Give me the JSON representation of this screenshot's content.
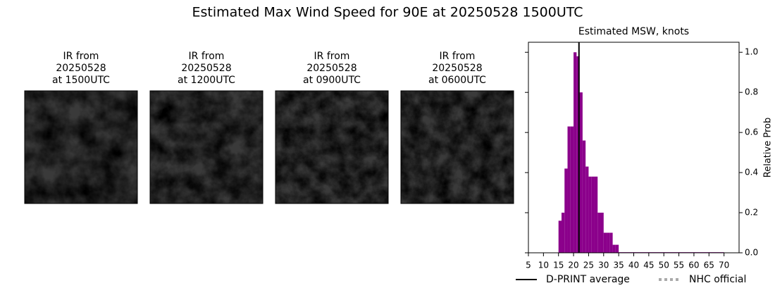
{
  "title": "Estimated Max Wind Speed for 90E at 20250528 1500UTC",
  "images": [
    {
      "lines": [
        "IR from",
        "20250528",
        "at 1500UTC"
      ]
    },
    {
      "lines": [
        "IR from",
        "20250528",
        "at 1200UTC"
      ]
    },
    {
      "lines": [
        "IR from",
        "20250528",
        "at 0900UTC"
      ]
    },
    {
      "lines": [
        "IR from",
        "20250528",
        "at 0600UTC"
      ]
    }
  ],
  "chart_data": {
    "type": "histogram",
    "title": "Estimated MSW, knots",
    "y_label": "Relative Prob",
    "color": "#8b008b",
    "bins": [
      15,
      16,
      17,
      18,
      19,
      20,
      21,
      22,
      23,
      24,
      25,
      26,
      27,
      28,
      29,
      30,
      31,
      32,
      33,
      34,
      35,
      70
    ],
    "values": [
      0.16,
      0.2,
      0.42,
      0.63,
      0.63,
      1.0,
      0.98,
      0.8,
      0.56,
      0.43,
      0.38,
      0.38,
      0.38,
      0.2,
      0.2,
      0.1,
      0.1,
      0.1,
      0.04,
      0.04,
      0.003
    ],
    "xlim": [
      5,
      75
    ],
    "xticks": [
      5,
      10,
      15,
      20,
      25,
      30,
      35,
      40,
      45,
      50,
      55,
      60,
      65,
      70
    ],
    "ylim": [
      0,
      1.05
    ],
    "yticks": [
      {
        "value": 0,
        "label": "0.0"
      },
      0.2,
      0.4,
      0.6,
      0.8,
      {
        "value": 1,
        "label": "1.0"
      }
    ],
    "reference_lines": [
      {
        "name": "D-PRINT average",
        "x": 21.8,
        "color": "#000000",
        "dash": "solid"
      },
      {
        "name": "NHC official",
        "x": null,
        "color": "#aaaaaa",
        "dash": "dotted"
      }
    ]
  }
}
